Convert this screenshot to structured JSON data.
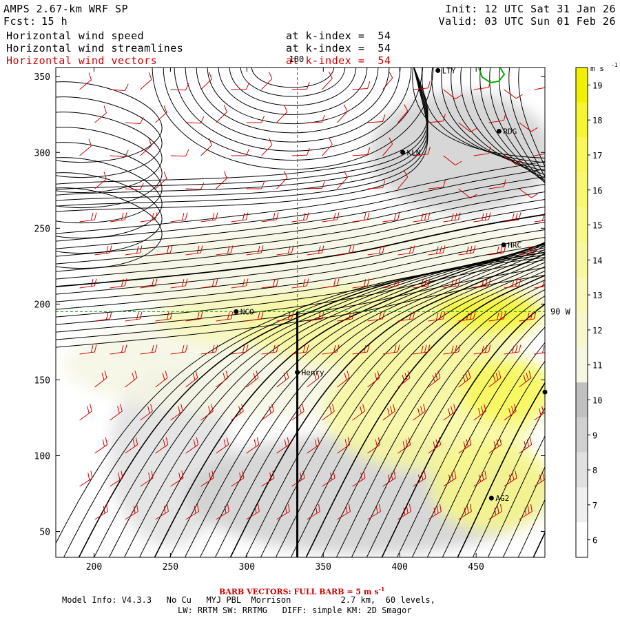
{
  "header": {
    "model": "AMPS 2.67-km WRF SP",
    "fcst_label": "Fcst:",
    "fcst_value": "15 h",
    "init": "Init: 12 UTC Sat 31 Jan 26",
    "valid": "Valid: 03 UTC Sun 01 Feb 26",
    "fields": [
      {
        "name": "Horizontal wind speed",
        "level": "at k-index =  54"
      },
      {
        "name": "Horizontal wind streamlines",
        "level": "at k-index =  54"
      },
      {
        "name": "Horizontal wind vectors",
        "level": "at k-index =  54"
      }
    ]
  },
  "footer": {
    "barb_note": "BARB VECTORS: FULL BARB = 5 m s",
    "barb_exp": "-1",
    "model_info": "Model Info: V4.3.3   No Cu   MYJ PBL  Morrison          2.7 km,  60 levels,",
    "model_info2": "LW: RRTM SW: RRTMG   DIFF: simple KM: 2D Smagor"
  },
  "colors": {
    "colorbar": [
      "#ffffff",
      "#efefef",
      "#e0e0e0",
      "#d0d0d0",
      "#c0c0c0",
      "#f6f6e4",
      "#f7f7cf",
      "#f8f8b8",
      "#f8f8a0",
      "#f8f888",
      "#f8f870",
      "#f8f858",
      "#f5f530",
      "#f0f000"
    ],
    "barb": "#d00000",
    "grid": "#009900",
    "coast": "#00aa00"
  },
  "stations": [
    {
      "id": "LTY",
      "x": 425,
      "y": 354
    },
    {
      "id": "RDG",
      "x": 465,
      "y": 314
    },
    {
      "id": "KLN",
      "x": 402,
      "y": 300
    },
    {
      "id": "HRC",
      "x": 468,
      "y": 239
    },
    {
      "id": "NCO",
      "x": 293,
      "y": 195
    },
    {
      "id": "Henry",
      "x": 333,
      "y": 155
    },
    {
      "id": "",
      "x": 495,
      "y": 142
    },
    {
      "id": "AG2",
      "x": 460,
      "y": 72
    }
  ],
  "chart_data": {
    "type": "heatmap",
    "title": "Horizontal wind speed / streamlines / vectors at k-index = 54",
    "xlabel": "",
    "ylabel": "",
    "xlim": [
      175,
      495
    ],
    "ylim": [
      33,
      356
    ],
    "x_ticks": [
      200,
      250,
      300,
      350,
      400,
      450
    ],
    "y_ticks": [
      50,
      100,
      150,
      200,
      250,
      300,
      350
    ],
    "colorbar_unit": "m s",
    "colorbar_unit_exp": "-1",
    "colorbar_levels": [
      6,
      7,
      8,
      9,
      10,
      11,
      12,
      13,
      14,
      15,
      16,
      17,
      18,
      19
    ],
    "meridian_label": "180",
    "meridian_x": 333,
    "parallel_label": "90 W",
    "parallel_y": 195,
    "cross_section": {
      "x": 333,
      "y_from": 33,
      "y_to": 195
    },
    "speed_blobs": [
      {
        "x": 310,
        "y": 190,
        "rx": 70,
        "ry": 18,
        "level": 13
      },
      {
        "x": 390,
        "y": 185,
        "rx": 95,
        "ry": 28,
        "level": 14
      },
      {
        "x": 460,
        "y": 195,
        "rx": 35,
        "ry": 14,
        "level": 18
      },
      {
        "x": 470,
        "y": 143,
        "rx": 30,
        "ry": 22,
        "level": 17
      },
      {
        "x": 420,
        "y": 130,
        "rx": 70,
        "ry": 40,
        "level": 14
      },
      {
        "x": 330,
        "y": 160,
        "rx": 150,
        "ry": 35,
        "level": 11
      },
      {
        "x": 380,
        "y": 220,
        "rx": 170,
        "ry": 35,
        "level": 11
      },
      {
        "x": 440,
        "y": 300,
        "rx": 60,
        "ry": 40,
        "level": 9
      },
      {
        "x": 380,
        "y": 75,
        "rx": 120,
        "ry": 40,
        "level": 9
      },
      {
        "x": 250,
        "y": 100,
        "rx": 40,
        "ry": 60,
        "level": 8
      },
      {
        "x": 460,
        "y": 80,
        "rx": 40,
        "ry": 30,
        "level": 15
      }
    ]
  }
}
